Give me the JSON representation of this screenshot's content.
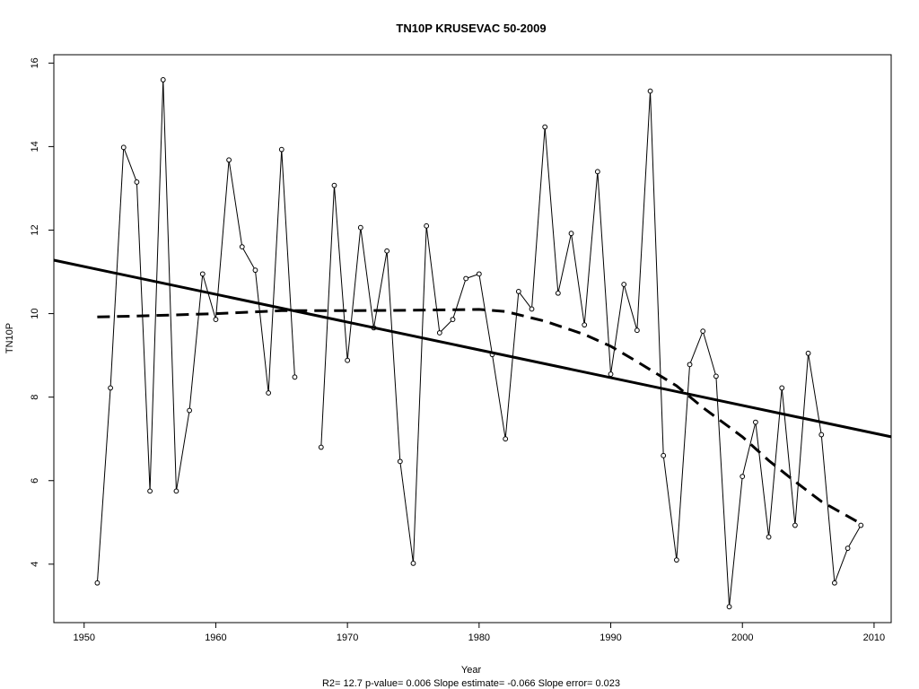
{
  "chart_data": {
    "type": "line",
    "title": "TN10P    KRUSEVAC 50-2009",
    "xlabel": "Year",
    "ylabel": "TN10P",
    "footnote": "R2= 12.7  p-value= 0.006  Slope estimate= -0.066  Slope error= 0.023",
    "xlim": [
      1947.7,
      2011.3
    ],
    "ylim": [
      2.6,
      16.2
    ],
    "xticks": [
      1950,
      1960,
      1970,
      1980,
      1990,
      2000,
      2010
    ],
    "yticks": [
      4,
      6,
      8,
      10,
      12,
      14,
      16
    ],
    "grid": false,
    "series": [
      {
        "style": "line-with-points",
        "points": [
          [
            1951,
            3.55
          ],
          [
            1952,
            8.22
          ],
          [
            1953,
            13.98
          ],
          [
            1954,
            13.15
          ],
          [
            1955,
            5.75
          ],
          [
            1956,
            15.6
          ],
          [
            1957,
            5.75
          ],
          [
            1958,
            7.68
          ],
          [
            1959,
            10.95
          ],
          [
            1960,
            9.86
          ],
          [
            1961,
            13.68
          ],
          [
            1962,
            11.6
          ],
          [
            1963,
            11.04
          ],
          [
            1964,
            8.1
          ],
          [
            1965,
            13.93
          ],
          [
            1966,
            8.48
          ],
          [
            1968,
            6.8
          ],
          [
            1969,
            13.07
          ],
          [
            1970,
            8.88
          ],
          [
            1971,
            12.06
          ],
          [
            1972,
            9.66
          ],
          [
            1973,
            11.5
          ],
          [
            1974,
            6.46
          ],
          [
            1975,
            4.02
          ],
          [
            1976,
            12.1
          ],
          [
            1977,
            9.54
          ],
          [
            1978,
            9.86
          ],
          [
            1979,
            10.84
          ],
          [
            1980,
            10.95
          ],
          [
            1981,
            9.02
          ],
          [
            1982,
            7.0
          ],
          [
            1983,
            10.53
          ],
          [
            1984,
            10.11
          ],
          [
            1985,
            14.47
          ],
          [
            1986,
            10.49
          ],
          [
            1987,
            11.92
          ],
          [
            1988,
            9.73
          ],
          [
            1989,
            13.4
          ],
          [
            1990,
            8.55
          ],
          [
            1991,
            10.7
          ],
          [
            1992,
            9.6
          ],
          [
            1993,
            15.33
          ],
          [
            1994,
            6.6
          ],
          [
            1995,
            4.1
          ],
          [
            1996,
            8.78
          ],
          [
            1997,
            9.58
          ],
          [
            1998,
            8.5
          ],
          [
            1999,
            2.98
          ],
          [
            2000,
            6.1
          ],
          [
            2001,
            7.4
          ],
          [
            2002,
            4.65
          ],
          [
            2003,
            8.22
          ],
          [
            2004,
            4.93
          ],
          [
            2005,
            9.05
          ],
          [
            2006,
            7.1
          ],
          [
            2007,
            3.55
          ],
          [
            2008,
            4.38
          ],
          [
            2009,
            4.93
          ]
        ]
      },
      {
        "style": "solid-thick",
        "points": [
          [
            1947.7,
            11.28
          ],
          [
            2011.3,
            7.05
          ]
        ]
      },
      {
        "style": "dashed-thick",
        "points": [
          [
            1951,
            9.92
          ],
          [
            1955,
            9.95
          ],
          [
            1960,
            10.0
          ],
          [
            1965,
            10.07
          ],
          [
            1970,
            10.07
          ],
          [
            1975,
            10.08
          ],
          [
            1980,
            10.1
          ],
          [
            1982,
            10.05
          ],
          [
            1985,
            9.82
          ],
          [
            1988,
            9.5
          ],
          [
            1990,
            9.22
          ],
          [
            1992,
            8.85
          ],
          [
            1995,
            8.27
          ],
          [
            1997,
            7.75
          ],
          [
            2000,
            7.05
          ],
          [
            2002,
            6.48
          ],
          [
            2004,
            5.98
          ],
          [
            2006,
            5.5
          ],
          [
            2009,
            4.97
          ]
        ]
      }
    ]
  }
}
